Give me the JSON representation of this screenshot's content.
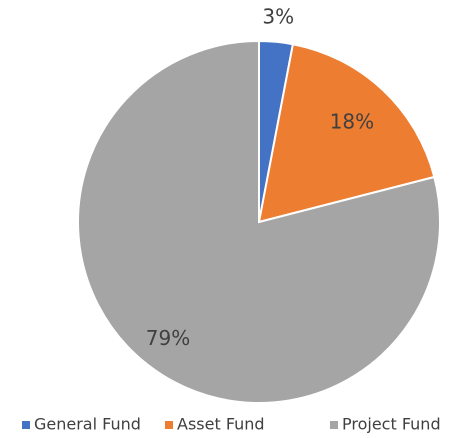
{
  "chart_data": {
    "type": "pie",
    "categories": [
      "General Fund",
      "Asset Fund",
      "Project Fund"
    ],
    "values": [
      3,
      18,
      79
    ],
    "value_labels": [
      "3%",
      "18%",
      "79%"
    ],
    "colors": [
      "#4472c4",
      "#ed7d31",
      "#a5a5a5"
    ],
    "legend": "bottom"
  }
}
